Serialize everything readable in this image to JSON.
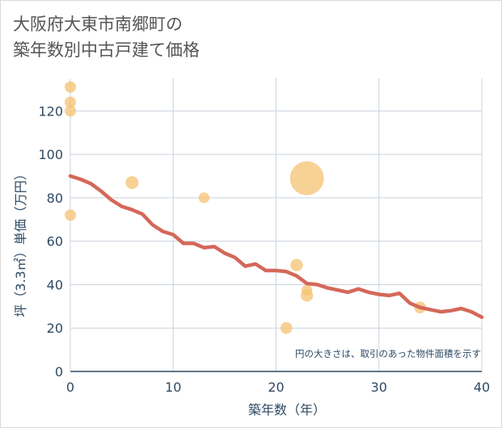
{
  "chart_data": {
    "type": "scatter",
    "title_line1": "大阪府大東市南郷町の",
    "title_line2": "築年数別中古戸建て価格",
    "xlabel": "築年数（年）",
    "ylabel": "坪（3.3㎡）単価（万円）",
    "xlim": [
      0,
      40
    ],
    "ylim": [
      0,
      135
    ],
    "x_ticks": [
      0,
      10,
      20,
      30,
      40
    ],
    "y_ticks": [
      0,
      20,
      40,
      60,
      80,
      100,
      120
    ],
    "grid": true,
    "note": "円の大きさは、取引のあった物件面積を示す",
    "colors": {
      "bubble": "#f5c270",
      "line": "#d4685a",
      "grid": "#c9d3dd",
      "text": "#2f4a63"
    },
    "points": [
      {
        "x": 0,
        "y": 131,
        "size": 1
      },
      {
        "x": 0,
        "y": 124,
        "size": 1
      },
      {
        "x": 0,
        "y": 120,
        "size": 1
      },
      {
        "x": 0,
        "y": 72,
        "size": 1
      },
      {
        "x": 6,
        "y": 87,
        "size": 1.3
      },
      {
        "x": 13,
        "y": 80,
        "size": 0.9
      },
      {
        "x": 21,
        "y": 20,
        "size": 1.1
      },
      {
        "x": 22,
        "y": 49,
        "size": 1.2
      },
      {
        "x": 23,
        "y": 89,
        "size": 9
      },
      {
        "x": 23,
        "y": 37.5,
        "size": 0.9
      },
      {
        "x": 23,
        "y": 35,
        "size": 1.2
      },
      {
        "x": 34,
        "y": 29.5,
        "size": 1.1
      }
    ],
    "trend": {
      "x": [
        0,
        1,
        2,
        3,
        4,
        5,
        6,
        7,
        8,
        9,
        10,
        11,
        12,
        13,
        14,
        15,
        16,
        17,
        18,
        19,
        20,
        21,
        22,
        23,
        24,
        25,
        26,
        27,
        28,
        29,
        30,
        31,
        32,
        33,
        34,
        35,
        36,
        37,
        38,
        39,
        40
      ],
      "y": [
        90,
        88.5,
        86.5,
        83,
        79,
        76,
        74.5,
        72.5,
        67.5,
        64.5,
        63,
        59,
        59,
        57,
        57.5,
        54.5,
        52.5,
        48.5,
        49.5,
        46.5,
        46.5,
        46,
        44,
        40.5,
        40,
        38.5,
        37.5,
        36.5,
        38,
        36.5,
        35.5,
        35,
        36,
        31.5,
        29.5,
        28.5,
        27.5,
        28,
        29,
        27.5,
        25
      ]
    }
  }
}
